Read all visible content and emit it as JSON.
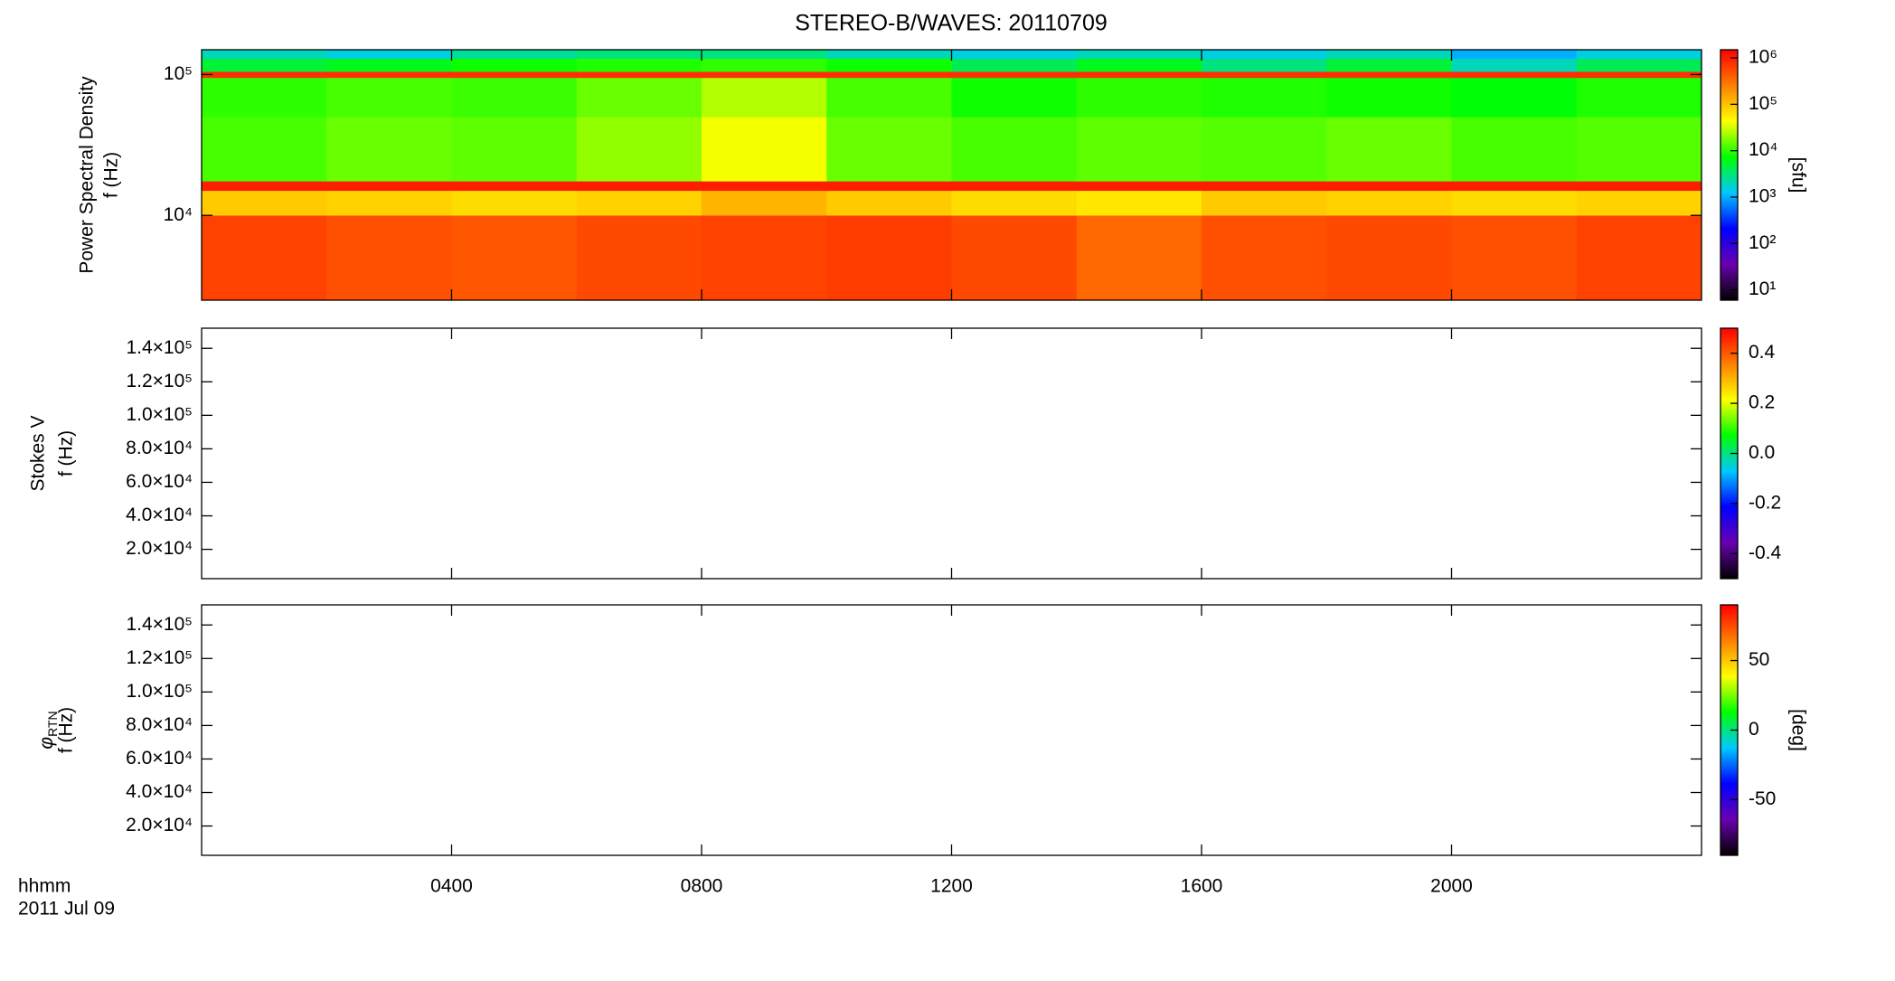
{
  "title": "STEREO-B/WAVES: 20110709",
  "xlabel": "hhmm",
  "date_label": "2011 Jul 09",
  "chart_data": [
    {
      "type": "heatmap",
      "ylabel": [
        "Power Spectral Density",
        "f (Hz)"
      ],
      "ylog": true,
      "xlim": [
        0,
        24
      ],
      "ylim": [
        2500,
        150000
      ],
      "yticks": [
        {
          "value": 10000,
          "label": "10⁴"
        },
        {
          "value": 100000,
          "label": "10⁵"
        }
      ],
      "x_edges": [
        0,
        2,
        4,
        6,
        8,
        10,
        12,
        14,
        16,
        18,
        20,
        22,
        24
      ],
      "y_edges": [
        2500,
        10000,
        15000,
        17500,
        50000,
        95000,
        105000,
        130000,
        150000
      ],
      "values": [
        [
          600000,
          500000,
          450000,
          550000,
          600000,
          650000,
          550000,
          350000,
          500000,
          550000,
          500000,
          600000
        ],
        [
          90000,
          80000,
          70000,
          80000,
          120000,
          90000,
          70000,
          60000,
          90000,
          80000,
          70000,
          80000
        ],
        [
          1000000,
          1000000,
          1000000,
          1000000,
          1000000,
          1000000,
          1000000,
          1000000,
          1000000,
          1000000,
          1000000,
          1000000
        ],
        [
          12000,
          15000,
          14000,
          20000,
          40000,
          15000,
          12000,
          14000,
          13000,
          15000,
          12000,
          13000
        ],
        [
          10000,
          12000,
          11000,
          15000,
          25000,
          12000,
          8000,
          10000,
          9000,
          8000,
          7000,
          9000
        ],
        [
          800000,
          800000,
          800000,
          800000,
          800000,
          800000,
          800000,
          800000,
          800000,
          800000,
          800000,
          800000
        ],
        [
          5000,
          6000,
          8000,
          9000,
          10000,
          8000,
          4000,
          6000,
          3000,
          5000,
          2000,
          4000
        ],
        [
          2000,
          1500,
          2500,
          3000,
          3000,
          2000,
          1500,
          2000,
          1500,
          2000,
          1000,
          1500
        ]
      ],
      "colormap": [
        "#000000",
        "#6a00b0",
        "#0000ff",
        "#00c8ff",
        "#00ff00",
        "#ffff00",
        "#ff7f00",
        "#ff0000"
      ],
      "colorbar": {
        "log": true,
        "lim": [
          6,
          1500000
        ],
        "label": "[sfu]",
        "ticks": [
          {
            "value": 10,
            "label": "10¹"
          },
          {
            "value": 100,
            "label": "10²"
          },
          {
            "value": 1000,
            "label": "10³"
          },
          {
            "value": 10000,
            "label": "10⁴"
          },
          {
            "value": 100000,
            "label": "10⁵"
          },
          {
            "value": 1000000,
            "label": "10⁶"
          }
        ]
      }
    },
    {
      "type": "heatmap",
      "ylabel": [
        "Stokes V",
        "f (Hz)"
      ],
      "ylog": false,
      "xlim": [
        0,
        24
      ],
      "ylim": [
        2500,
        152000
      ],
      "yticks": [
        {
          "value": 20000,
          "label": "2.0×10⁴"
        },
        {
          "value": 40000,
          "label": "4.0×10⁴"
        },
        {
          "value": 60000,
          "label": "6.0×10⁴"
        },
        {
          "value": 80000,
          "label": "8.0×10⁴"
        },
        {
          "value": 100000,
          "label": "1.0×10⁵"
        },
        {
          "value": 120000,
          "label": "1.2×10⁵"
        },
        {
          "value": 140000,
          "label": "1.4×10⁵"
        }
      ],
      "colormap": [
        "#000000",
        "#6a00b0",
        "#0000ff",
        "#00c8ff",
        "#00ff00",
        "#ffff00",
        "#ff7f00",
        "#ff0000"
      ],
      "colorbar": {
        "log": false,
        "lim": [
          -0.5,
          0.5
        ],
        "ticks": [
          -0.4,
          -0.2,
          {
            "value": 0,
            "label": "0.0"
          },
          0.2,
          0.4
        ]
      }
    },
    {
      "type": "heatmap",
      "ylabel_symbol": "φ",
      "ylabel_subscript": "RTN",
      "ylabel": [
        "f (Hz)"
      ],
      "ylog": false,
      "xlim": [
        0,
        24
      ],
      "ylim": [
        2500,
        152000
      ],
      "yticks": [
        {
          "value": 20000,
          "label": "2.0×10⁴"
        },
        {
          "value": 40000,
          "label": "4.0×10⁴"
        },
        {
          "value": 60000,
          "label": "6.0×10⁴"
        },
        {
          "value": 80000,
          "label": "8.0×10⁴"
        },
        {
          "value": 100000,
          "label": "1.0×10⁵"
        },
        {
          "value": 120000,
          "label": "1.2×10⁵"
        },
        {
          "value": 140000,
          "label": "1.4×10⁵"
        }
      ],
      "xticks": [
        {
          "value": 4,
          "label": "0400"
        },
        {
          "value": 8,
          "label": "0800"
        },
        {
          "value": 12,
          "label": "1200"
        },
        {
          "value": 16,
          "label": "1600"
        },
        {
          "value": 20,
          "label": "2000"
        }
      ],
      "colormap": [
        "#000000",
        "#6a00b0",
        "#0000ff",
        "#00c8ff",
        "#00ff00",
        "#ffff00",
        "#ff7f00",
        "#ff0000"
      ],
      "colorbar": {
        "log": false,
        "lim": [
          -90,
          90
        ],
        "label": "[deg]",
        "ticks": [
          -50,
          0,
          50
        ]
      }
    }
  ]
}
